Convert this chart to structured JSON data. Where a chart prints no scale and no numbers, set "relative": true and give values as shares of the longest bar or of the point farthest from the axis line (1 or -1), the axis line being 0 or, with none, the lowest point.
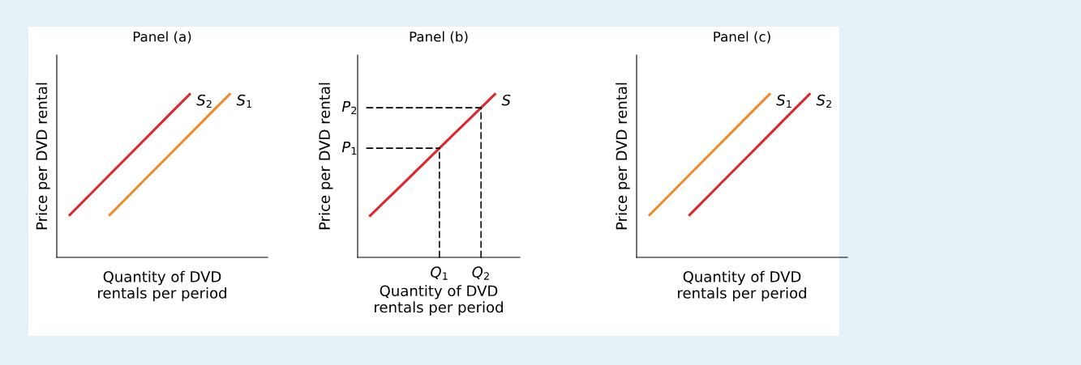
{
  "chart_data": [
    {
      "type": "line",
      "title": "Panel (a)",
      "xlabel": "Quantity of DVD\nrentals per period",
      "ylabel": "Price per DVD rental",
      "relative": true,
      "grid": false,
      "legend": false,
      "categories": [
        null,
        null,
        null,
        null,
        null,
        null,
        null,
        null,
        null
      ],
      "series": [
        {
          "name": "S$_{2}$",
          "color": "#e0262b",
          "values": [
            0.26,
            0.383,
            0.507,
            0.63,
            0.753,
            0.877,
            1,
            null,
            null
          ]
        },
        {
          "name": "S$_{1}$",
          "color": "#f08a2a",
          "values": [
            null,
            null,
            0.26,
            0.383,
            0.507,
            0.63,
            0.753,
            0.877,
            1
          ]
        }
      ]
    },
    {
      "type": "line",
      "title": "Panel (b)",
      "xlabel": "Quantity of DVD\nrentals per period",
      "ylabel": "Price per DVD rental",
      "relative": true,
      "grid": false,
      "legend": false,
      "categories": [
        null,
        null,
        null,
        null,
        null,
        "Q$_{1}$",
        null,
        null,
        "Q$_{2}$",
        null
      ],
      "series": [
        {
          "name": "S",
          "color": "#e0262b",
          "values": [
            0.255,
            0.338,
            0.42,
            0.503,
            0.586,
            0.669,
            0.752,
            0.834,
            0.917,
            1
          ]
        }
      ],
      "annotations": [
        {
          "text": "P$_{1}$",
          "x": "Q$_{1}$",
          "y": 0.669
        },
        {
          "text": "P$_{2}$",
          "x": "Q$_{2}$",
          "y": 0.917
        }
      ]
    },
    {
      "type": "line",
      "title": "Panel (c)",
      "xlabel": "Quantity of DVD\nrentals per period",
      "ylabel": "Price per DVD rental",
      "relative": true,
      "grid": false,
      "legend": false,
      "categories": [
        null,
        null,
        null,
        null,
        null,
        null,
        null,
        null,
        null
      ],
      "series": [
        {
          "name": "S$_{1}$",
          "color": "#f08a2a",
          "values": [
            0.26,
            0.383,
            0.507,
            0.63,
            0.753,
            0.877,
            1,
            null,
            null
          ]
        },
        {
          "name": "S$_{2}$",
          "color": "#e0262b",
          "values": [
            null,
            null,
            0.26,
            0.383,
            0.507,
            0.63,
            0.753,
            0.877,
            1
          ]
        }
      ]
    }
  ]
}
